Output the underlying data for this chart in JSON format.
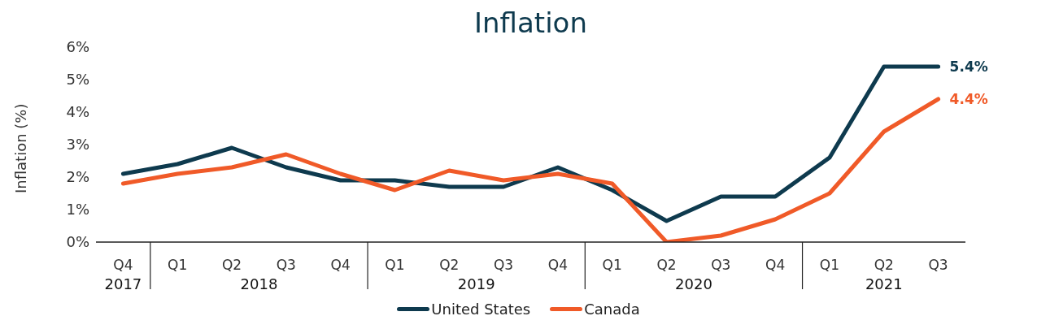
{
  "chart_data": {
    "type": "line",
    "title": "Inflation",
    "ylabel": "Inflation (%)",
    "categories": [
      "Q4",
      "Q1",
      "Q2",
      "Q3",
      "Q4",
      "Q1",
      "Q2",
      "Q3",
      "Q4",
      "Q1",
      "Q2",
      "Q3",
      "Q4",
      "Q1",
      "Q2",
      "Q3"
    ],
    "annotations": [
      "2017",
      "2018",
      "2019",
      "2020",
      "2021"
    ],
    "series": [
      {
        "name": "United States",
        "color": "#0e3a4e",
        "values": [
          2.1,
          2.4,
          2.9,
          2.3,
          1.9,
          1.9,
          1.7,
          1.7,
          2.3,
          1.6,
          0.65,
          1.4,
          1.4,
          2.6,
          5.4,
          5.4
        ],
        "value_labels": [
          null,
          null,
          null,
          null,
          null,
          null,
          null,
          null,
          null,
          null,
          null,
          null,
          null,
          null,
          null,
          "5.4%"
        ]
      },
      {
        "name": "Canada",
        "color": "#f05a28",
        "values": [
          1.8,
          2.1,
          2.3,
          2.7,
          2.1,
          1.6,
          2.2,
          1.9,
          2.1,
          1.8,
          0,
          0.2,
          0.7,
          1.5,
          3.4,
          4.4
        ],
        "value_labels": [
          null,
          null,
          null,
          null,
          null,
          null,
          null,
          null,
          null,
          null,
          null,
          null,
          null,
          null,
          null,
          "4.4%"
        ]
      }
    ],
    "ylim": [
      0,
      6
    ],
    "yticks": [
      {
        "value": 0,
        "label": "0%"
      },
      {
        "value": 1,
        "label": "1%"
      },
      {
        "value": 2,
        "label": "2%"
      },
      {
        "value": 3,
        "label": "3%"
      },
      {
        "value": 4,
        "label": "4%"
      },
      {
        "value": 5,
        "label": "5%"
      },
      {
        "value": 6,
        "label": "6%"
      }
    ],
    "legend": "bottom"
  }
}
